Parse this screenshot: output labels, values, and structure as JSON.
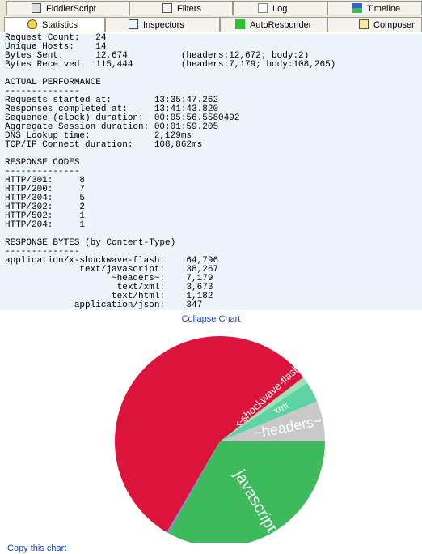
{
  "tabs_row1": [
    "FiddlerScript",
    "Filters",
    "Log",
    "Timeline"
  ],
  "tabs_row2": [
    "Statistics",
    "Inspectors",
    "AutoResponder",
    "Composer"
  ],
  "stats": [
    [
      "Request Count:   24",
      "Unique Hosts:    14",
      "Bytes Sent:      12,674          (headers:12,672; body:2)",
      "Bytes Received:  115,444         (headers:7,179; body:108,265)"
    ],
    [
      "ACTUAL PERFORMANCE",
      "--------------",
      "Requests started at:        13:35:47.262",
      "Responses completed at:     13:41:43.820",
      "Sequence (clock) duration:  00:05:56.5580492",
      "Aggregate Session duration: 00:01:59.205",
      "DNS Lookup time:            2,129ms",
      "TCP/IP Connect duration:    108,862ms"
    ],
    [
      "RESPONSE CODES",
      "--------------",
      "HTTP/301:     8",
      "HTTP/200:     7",
      "HTTP/304:     5",
      "HTTP/302:     2",
      "HTTP/502:     1",
      "HTTP/204:     1"
    ],
    [
      "RESPONSE BYTES (by Content-Type)",
      "--------------",
      "application/x-shockwave-flash:    64,796",
      "              text/javascript:    38,267",
      "                    ~headers~:    7,179",
      "                     text/xml:    3,673",
      "                    text/html:    1,182",
      "             application/json:    347"
    ]
  ],
  "collapse_link": "Collapse Chart",
  "copy_link": "Copy this chart",
  "chart_data": {
    "type": "pie",
    "categories": [
      "~headers~",
      "text/xml",
      "text/html",
      "application/x-shockwave-flash",
      "application/json",
      "text/javascript"
    ],
    "values": [
      7179,
      3673,
      1182,
      64796,
      347,
      38267
    ],
    "labels": [
      "~headers~",
      "xml",
      null,
      "x-shockwave-flash",
      null,
      "javascript"
    ],
    "colors": [
      "#c9c9c9",
      "#5ed3a4",
      "#9fe0b8",
      "#dc143c",
      "#8b7fe0",
      "#3cba5c"
    ]
  }
}
